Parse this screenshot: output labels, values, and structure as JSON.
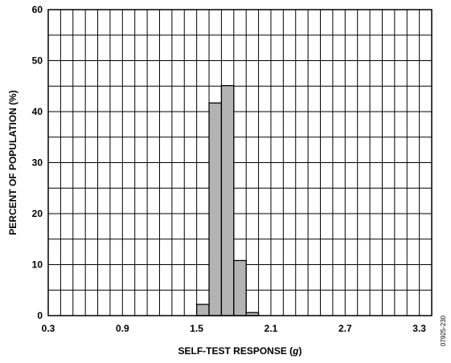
{
  "chart_data": {
    "type": "bar",
    "xlabel_prefix": "SELF-TEST RESPONSE (",
    "xlabel_unit": "g",
    "xlabel_suffix": ")",
    "ylabel": "PERCENT OF POPULATION (%)",
    "xlim": [
      0.3,
      3.4
    ],
    "ylim": [
      0,
      60
    ],
    "x_ticks": [
      0.3,
      0.9,
      1.5,
      2.1,
      2.7,
      3.3
    ],
    "x_tick_labels": [
      "0.3",
      "0.9",
      "1.5",
      "2.1",
      "2.7",
      "3.3"
    ],
    "y_ticks": [
      0,
      10,
      20,
      30,
      40,
      50,
      60
    ],
    "y_tick_labels": [
      "0",
      "10",
      "20",
      "30",
      "40",
      "50",
      "60"
    ],
    "x_grid_step": 0.1,
    "y_grid_step": 5,
    "grid": true,
    "bin_width": 0.1,
    "bins": [
      {
        "x0": 1.5,
        "x1": 1.6,
        "value": 2.2
      },
      {
        "x0": 1.6,
        "x1": 1.7,
        "value": 41.7
      },
      {
        "x0": 1.7,
        "x1": 1.8,
        "value": 45.1
      },
      {
        "x0": 1.8,
        "x1": 1.9,
        "value": 10.8
      },
      {
        "x0": 1.9,
        "x1": 2.0,
        "value": 0.6
      }
    ],
    "bar_color": "#b3b3b3",
    "figure_code": "07925-230"
  }
}
